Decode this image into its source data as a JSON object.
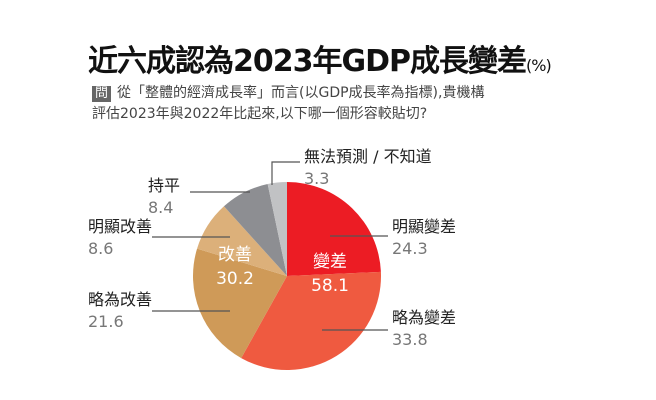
{
  "title": "近六成認為2023年GDP成長變差",
  "title_unit": "(%)",
  "question_tag": "問",
  "question_line1": "從「整體的經濟成長率」而言(以GDP成長率為指標),貴機構",
  "question_line2": "評估2023年與2022年比起來,以下哪一個形容較貼切?",
  "chart_data": {
    "type": "pie",
    "unit": "%",
    "slices": [
      {
        "label": "明顯變差",
        "value": 24.3,
        "color": "#ec1c24"
      },
      {
        "label": "略為變差",
        "value": 33.8,
        "color": "#ef5a40"
      },
      {
        "label": "略為改善",
        "value": 21.6,
        "color": "#cf9a58"
      },
      {
        "label": "明顯改善",
        "value": 8.6,
        "color": "#dcb07a"
      },
      {
        "label": "持平",
        "value": 8.4,
        "color": "#8d8e92"
      },
      {
        "label": "無法預測 / 不知道",
        "value": 3.3,
        "color": "#c1c2c4"
      }
    ],
    "groups": [
      {
        "label": "變差",
        "value": 58.1
      },
      {
        "label": "改善",
        "value": 30.2
      }
    ]
  }
}
